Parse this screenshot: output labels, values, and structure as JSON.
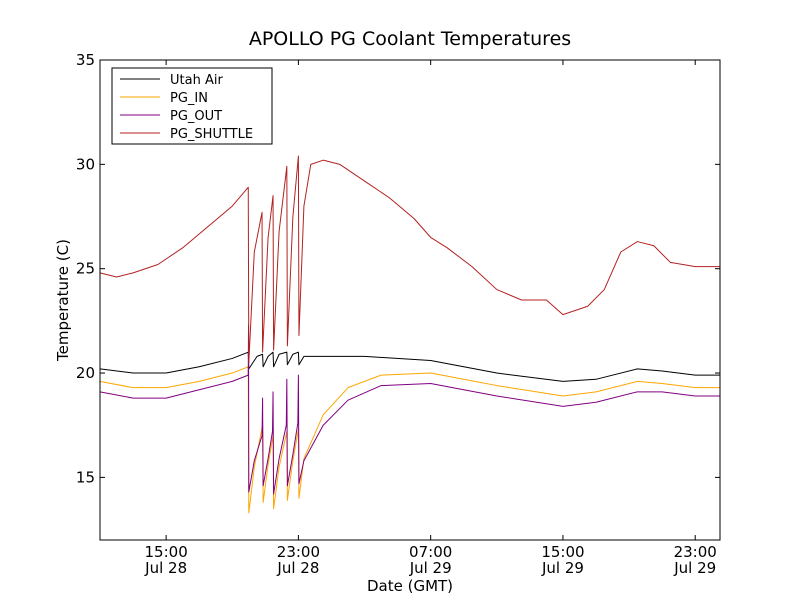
{
  "chart_data": {
    "type": "line",
    "title": "APOLLO PG Coolant Temperatures",
    "xlabel": "Date (GMT)",
    "ylabel": "Temperature (C)",
    "ylim": [
      12,
      35
    ],
    "xlim": [
      "Jul 28 11:00",
      "Jul 30 00:30"
    ],
    "grid": false,
    "legend_position": "top-left",
    "y_ticks": [
      15,
      20,
      25,
      30,
      35
    ],
    "x_ticks": [
      {
        "x": "Jul 28 15:00",
        "time": "15:00",
        "date": "Jul 28"
      },
      {
        "x": "Jul 28 23:00",
        "time": "23:00",
        "date": "Jul 28"
      },
      {
        "x": "Jul 29 07:00",
        "time": "07:00",
        "date": "Jul 29"
      },
      {
        "x": "Jul 29 15:00",
        "time": "15:00",
        "date": "Jul 29"
      },
      {
        "x": "Jul 29 23:00",
        "time": "23:00",
        "date": "Jul 29"
      }
    ],
    "series": [
      {
        "name": "Utah Air",
        "color": "#000000",
        "points": [
          [
            "Jul 28 11:00",
            20.2
          ],
          [
            "Jul 28 13:00",
            20.0
          ],
          [
            "Jul 28 15:00",
            20.0
          ],
          [
            "Jul 28 17:00",
            20.3
          ],
          [
            "Jul 28 19:00",
            20.7
          ],
          [
            "Jul 28 19:58",
            21.0
          ],
          [
            "Jul 28 20:00",
            20.2
          ],
          [
            "Jul 28 20:30",
            20.8
          ],
          [
            "Jul 28 20:50",
            20.9
          ],
          [
            "Jul 28 20:52",
            20.3
          ],
          [
            "Jul 28 21:10",
            20.8
          ],
          [
            "Jul 28 21:28",
            21.0
          ],
          [
            "Jul 28 21:30",
            20.3
          ],
          [
            "Jul 28 21:50",
            20.9
          ],
          [
            "Jul 28 22:18",
            21.0
          ],
          [
            "Jul 28 22:20",
            20.4
          ],
          [
            "Jul 28 22:40",
            20.9
          ],
          [
            "Jul 28 23:00",
            21.0
          ],
          [
            "Jul 28 23:02",
            20.4
          ],
          [
            "Jul 28 23:20",
            20.8
          ],
          [
            "Jul 29 00:30",
            20.8
          ],
          [
            "Jul 29 03:00",
            20.8
          ],
          [
            "Jul 29 07:00",
            20.6
          ],
          [
            "Jul 29 11:00",
            20.0
          ],
          [
            "Jul 29 15:00",
            19.6
          ],
          [
            "Jul 29 17:00",
            19.7
          ],
          [
            "Jul 29 19:30",
            20.2
          ],
          [
            "Jul 29 21:00",
            20.1
          ],
          [
            "Jul 29 23:00",
            19.9
          ],
          [
            "Jul 30 00:30",
            19.9
          ]
        ]
      },
      {
        "name": "PG_IN",
        "color": "#ffa500",
        "points": [
          [
            "Jul 28 11:00",
            19.6
          ],
          [
            "Jul 28 13:00",
            19.3
          ],
          [
            "Jul 28 15:00",
            19.3
          ],
          [
            "Jul 28 17:00",
            19.6
          ],
          [
            "Jul 28 19:00",
            20.0
          ],
          [
            "Jul 28 19:58",
            20.3
          ],
          [
            "Jul 28 20:00",
            13.3
          ],
          [
            "Jul 28 20:20",
            15.5
          ],
          [
            "Jul 28 20:50",
            17.5
          ],
          [
            "Jul 28 20:52",
            13.8
          ],
          [
            "Jul 28 21:10",
            15.6
          ],
          [
            "Jul 28 21:28",
            17.0
          ],
          [
            "Jul 28 21:30",
            13.5
          ],
          [
            "Jul 28 21:50",
            15.5
          ],
          [
            "Jul 28 22:18",
            17.2
          ],
          [
            "Jul 28 22:20",
            13.9
          ],
          [
            "Jul 28 22:40",
            15.8
          ],
          [
            "Jul 28 23:00",
            17.3
          ],
          [
            "Jul 28 23:02",
            14.0
          ],
          [
            "Jul 28 23:20",
            15.9
          ],
          [
            "Jul 29 00:30",
            18.0
          ],
          [
            "Jul 29 02:00",
            19.3
          ],
          [
            "Jul 29 04:00",
            19.9
          ],
          [
            "Jul 29 07:00",
            20.0
          ],
          [
            "Jul 29 11:00",
            19.4
          ],
          [
            "Jul 29 15:00",
            18.9
          ],
          [
            "Jul 29 17:00",
            19.1
          ],
          [
            "Jul 29 19:30",
            19.6
          ],
          [
            "Jul 29 21:00",
            19.5
          ],
          [
            "Jul 29 23:00",
            19.3
          ],
          [
            "Jul 30 00:30",
            19.3
          ]
        ]
      },
      {
        "name": "PG_OUT",
        "color": "#800080",
        "points": [
          [
            "Jul 28 11:00",
            19.1
          ],
          [
            "Jul 28 13:00",
            18.8
          ],
          [
            "Jul 28 15:00",
            18.8
          ],
          [
            "Jul 28 17:00",
            19.2
          ],
          [
            "Jul 28 19:00",
            19.6
          ],
          [
            "Jul 28 19:58",
            19.9
          ],
          [
            "Jul 28 19:59",
            22.3
          ],
          [
            "Jul 28 20:00",
            14.3
          ],
          [
            "Jul 28 20:20",
            15.8
          ],
          [
            "Jul 28 20:48",
            17.0
          ],
          [
            "Jul 28 20:50",
            18.8
          ],
          [
            "Jul 28 20:52",
            14.6
          ],
          [
            "Jul 28 21:10",
            15.9
          ],
          [
            "Jul 28 21:26",
            17.2
          ],
          [
            "Jul 28 21:28",
            19.1
          ],
          [
            "Jul 28 21:30",
            14.2
          ],
          [
            "Jul 28 21:50",
            15.9
          ],
          [
            "Jul 28 22:16",
            17.5
          ],
          [
            "Jul 28 22:18",
            19.7
          ],
          [
            "Jul 28 22:20",
            14.6
          ],
          [
            "Jul 28 22:40",
            16.1
          ],
          [
            "Jul 28 22:58",
            17.6
          ],
          [
            "Jul 28 23:00",
            19.9
          ],
          [
            "Jul 28 23:02",
            14.7
          ],
          [
            "Jul 28 23:20",
            15.8
          ],
          [
            "Jul 29 00:30",
            17.5
          ],
          [
            "Jul 29 02:00",
            18.7
          ],
          [
            "Jul 29 04:00",
            19.4
          ],
          [
            "Jul 29 07:00",
            19.5
          ],
          [
            "Jul 29 11:00",
            18.9
          ],
          [
            "Jul 29 15:00",
            18.4
          ],
          [
            "Jul 29 17:00",
            18.6
          ],
          [
            "Jul 29 19:30",
            19.1
          ],
          [
            "Jul 29 21:00",
            19.1
          ],
          [
            "Jul 29 23:00",
            18.9
          ],
          [
            "Jul 30 00:30",
            18.9
          ]
        ]
      },
      {
        "name": "PG_SHUTTLE",
        "color": "#b22222",
        "points": [
          [
            "Jul 28 11:00",
            24.8
          ],
          [
            "Jul 28 12:00",
            24.6
          ],
          [
            "Jul 28 13:00",
            24.8
          ],
          [
            "Jul 28 14:30",
            25.2
          ],
          [
            "Jul 28 16:00",
            26.0
          ],
          [
            "Jul 28 17:30",
            27.0
          ],
          [
            "Jul 28 19:00",
            28.0
          ],
          [
            "Jul 28 19:58",
            28.9
          ],
          [
            "Jul 28 20:00",
            20.5
          ],
          [
            "Jul 28 20:20",
            25.8
          ],
          [
            "Jul 28 20:48",
            27.7
          ],
          [
            "Jul 28 20:50",
            21.0
          ],
          [
            "Jul 28 21:10",
            26.5
          ],
          [
            "Jul 28 21:28",
            28.5
          ],
          [
            "Jul 28 21:30",
            21.1
          ],
          [
            "Jul 28 21:50",
            26.8
          ],
          [
            "Jul 28 22:18",
            29.9
          ],
          [
            "Jul 28 22:20",
            21.3
          ],
          [
            "Jul 28 22:40",
            27.5
          ],
          [
            "Jul 28 23:00",
            30.4
          ],
          [
            "Jul 28 23:02",
            21.8
          ],
          [
            "Jul 28 23:20",
            28.0
          ],
          [
            "Jul 28 23:45",
            30.0
          ],
          [
            "Jul 29 00:30",
            30.2
          ],
          [
            "Jul 29 01:30",
            30.0
          ],
          [
            "Jul 29 03:00",
            29.2
          ],
          [
            "Jul 29 04:30",
            28.4
          ],
          [
            "Jul 29 06:00",
            27.4
          ],
          [
            "Jul 29 07:00",
            26.5
          ],
          [
            "Jul 29 08:00",
            26.0
          ],
          [
            "Jul 29 09:30",
            25.1
          ],
          [
            "Jul 29 11:00",
            24.0
          ],
          [
            "Jul 29 12:30",
            23.5
          ],
          [
            "Jul 29 14:00",
            23.5
          ],
          [
            "Jul 29 15:00",
            22.8
          ],
          [
            "Jul 29 16:30",
            23.2
          ],
          [
            "Jul 29 17:30",
            24.0
          ],
          [
            "Jul 29 18:30",
            25.8
          ],
          [
            "Jul 29 19:30",
            26.3
          ],
          [
            "Jul 29 20:30",
            26.1
          ],
          [
            "Jul 29 21:30",
            25.3
          ],
          [
            "Jul 29 23:00",
            25.1
          ],
          [
            "Jul 30 00:30",
            25.1
          ]
        ]
      }
    ]
  }
}
